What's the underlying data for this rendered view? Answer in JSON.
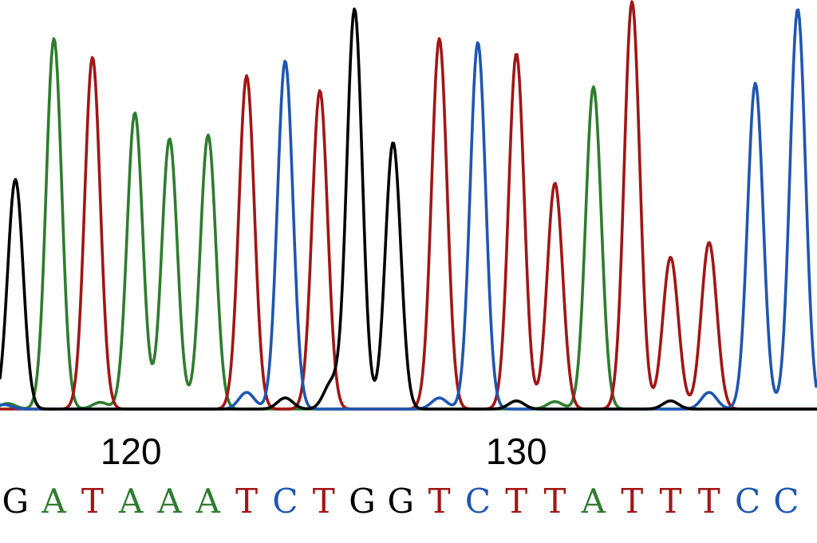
{
  "chart_data": {
    "type": "line",
    "title": "",
    "xlabel": "",
    "ylabel": "",
    "grid": false,
    "legend": "none",
    "x_range": [
      116.6,
      137.8
    ],
    "y_range": [
      0,
      1100
    ],
    "position_labels": [
      {
        "position": 120,
        "label": "120"
      },
      {
        "position": 130,
        "label": "130"
      }
    ],
    "channels": [
      {
        "base": "A",
        "color": "#2e7d2e"
      },
      {
        "base": "T",
        "color": "#a31515"
      },
      {
        "base": "C",
        "color": "#1e56b3"
      },
      {
        "base": "G",
        "color": "#000000"
      }
    ],
    "base_calls": [
      {
        "position": 117,
        "base": "G"
      },
      {
        "position": 118,
        "base": "A"
      },
      {
        "position": 119,
        "base": "T"
      },
      {
        "position": 120,
        "base": "A"
      },
      {
        "position": 121,
        "base": "A"
      },
      {
        "position": 122,
        "base": "A"
      },
      {
        "position": 123,
        "base": "T"
      },
      {
        "position": 124,
        "base": "C"
      },
      {
        "position": 125,
        "base": "T"
      },
      {
        "position": 126,
        "base": "G"
      },
      {
        "position": 127,
        "base": "G"
      },
      {
        "position": 128,
        "base": "T"
      },
      {
        "position": 129,
        "base": "C"
      },
      {
        "position": 130,
        "base": "T"
      },
      {
        "position": 131,
        "base": "T"
      },
      {
        "position": 132,
        "base": "A"
      },
      {
        "position": 133,
        "base": "T"
      },
      {
        "position": 134,
        "base": "T"
      },
      {
        "position": 135,
        "base": "T"
      },
      {
        "position": 136,
        "base": "C"
      },
      {
        "position": 137,
        "base": "C"
      }
    ],
    "peaks": {
      "G": [
        {
          "x": 117.0,
          "height": 620
        },
        {
          "x": 125.8,
          "height": 1080
        },
        {
          "x": 126.8,
          "height": 720
        },
        {
          "x": 125.2,
          "height": 70
        },
        {
          "x": 124.0,
          "height": 30
        },
        {
          "x": 130.0,
          "height": 22
        },
        {
          "x": 134.0,
          "height": 22
        }
      ],
      "A": [
        {
          "x": 118.0,
          "height": 1000
        },
        {
          "x": 120.1,
          "height": 800
        },
        {
          "x": 121.0,
          "height": 730
        },
        {
          "x": 122.0,
          "height": 740
        },
        {
          "x": 132.0,
          "height": 870
        },
        {
          "x": 116.8,
          "height": 15
        },
        {
          "x": 119.2,
          "height": 18
        },
        {
          "x": 131.0,
          "height": 20
        }
      ],
      "T": [
        {
          "x": 119.0,
          "height": 950
        },
        {
          "x": 123.0,
          "height": 900
        },
        {
          "x": 124.9,
          "height": 860
        },
        {
          "x": 128.0,
          "height": 1000
        },
        {
          "x": 130.0,
          "height": 960
        },
        {
          "x": 131.0,
          "height": 610
        },
        {
          "x": 133.0,
          "height": 1100
        },
        {
          "x": 134.0,
          "height": 410
        },
        {
          "x": 135.0,
          "height": 450
        }
      ],
      "C": [
        {
          "x": 124.0,
          "height": 940
        },
        {
          "x": 129.0,
          "height": 990
        },
        {
          "x": 136.2,
          "height": 880
        },
        {
          "x": 137.3,
          "height": 1080
        },
        {
          "x": 123.0,
          "height": 45
        },
        {
          "x": 128.0,
          "height": 30
        },
        {
          "x": 135.0,
          "height": 45
        },
        {
          "x": 116.7,
          "height": 12
        }
      ]
    }
  }
}
